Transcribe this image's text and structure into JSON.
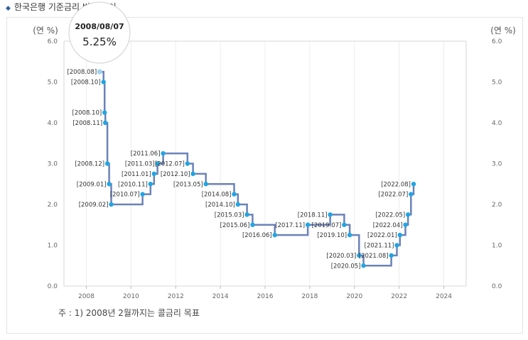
{
  "page": {
    "title": "한국은행 기준금리 변동 추이",
    "footnote": "주 : 1) 2008년 2월까지는 콜금리 목표"
  },
  "tooltip": {
    "date": "2008/08/07",
    "value": "5.25%"
  },
  "chart_data": {
    "type": "line",
    "step": true,
    "y_axis_label_left": "(연 %)",
    "y_axis_label_right": "(연 %)",
    "ylim": [
      0,
      6
    ],
    "yticks": [
      "0.0",
      "1.0",
      "2.0",
      "3.0",
      "4.0",
      "5.0",
      "6.0"
    ],
    "xlim": [
      2007,
      2025
    ],
    "xticks": [
      "2008",
      "2010",
      "2012",
      "2014",
      "2016",
      "2018",
      "2020",
      "2022",
      "2024"
    ],
    "grid": "x-major",
    "colors": {
      "line": "#6b82b8",
      "point": "#22a5e3",
      "point_highlight": "#9fd3ef"
    },
    "points": [
      {
        "date": "2008-08-07",
        "label": "[2008.08]",
        "value": 5.25
      },
      {
        "date": "2008-10-09",
        "label": "[2008.10]",
        "value": 5.0
      },
      {
        "date": "2008-10-27",
        "label": "[2008.10]",
        "value": 4.25
      },
      {
        "date": "2008-11-07",
        "label": "[2008.11]",
        "value": 4.0
      },
      {
        "date": "2008-12-11",
        "label": "[2008.12]",
        "value": 3.0
      },
      {
        "date": "2009-01-09",
        "label": "[2009.01]",
        "value": 2.5
      },
      {
        "date": "2009-02-12",
        "label": "[2009.02]",
        "value": 2.0
      },
      {
        "date": "2010-07-09",
        "label": "[2010.07]",
        "value": 2.25
      },
      {
        "date": "2010-11-16",
        "label": "[2010.11]",
        "value": 2.5
      },
      {
        "date": "2011-01-13",
        "label": "[2011.01]",
        "value": 2.75
      },
      {
        "date": "2011-03-10",
        "label": "[2011.03]",
        "value": 3.0
      },
      {
        "date": "2011-06-10",
        "label": "[2011.06]",
        "value": 3.25
      },
      {
        "date": "2012-07-12",
        "label": "[2012.07]",
        "value": 3.0
      },
      {
        "date": "2012-10-11",
        "label": "[2012.10]",
        "value": 2.75
      },
      {
        "date": "2013-05-09",
        "label": "[2013.05]",
        "value": 2.5
      },
      {
        "date": "2014-08-14",
        "label": "[2014.08]",
        "value": 2.25
      },
      {
        "date": "2014-10-15",
        "label": "[2014.10]",
        "value": 2.0
      },
      {
        "date": "2015-03-12",
        "label": "[2015.03]",
        "value": 1.75
      },
      {
        "date": "2015-06-11",
        "label": "[2015.06]",
        "value": 1.5
      },
      {
        "date": "2016-06-09",
        "label": "[2016.06]",
        "value": 1.25
      },
      {
        "date": "2017-11-30",
        "label": "[2017.11]",
        "value": 1.5
      },
      {
        "date": "2018-11-30",
        "label": "[2018.11]",
        "value": 1.75
      },
      {
        "date": "2019-07-18",
        "label": "[2019.07]",
        "value": 1.5
      },
      {
        "date": "2019-10-16",
        "label": "[2019.10]",
        "value": 1.25
      },
      {
        "date": "2020-03-17",
        "label": "[2020.03]",
        "value": 0.75
      },
      {
        "date": "2020-05-28",
        "label": "[2020.05]",
        "value": 0.5
      },
      {
        "date": "2021-08-26",
        "label": "[2021.08]",
        "value": 0.75
      },
      {
        "date": "2021-11-25",
        "label": "[2021.11]",
        "value": 1.0
      },
      {
        "date": "2022-01-14",
        "label": "[2022.01]",
        "value": 1.25
      },
      {
        "date": "2022-04-14",
        "label": "[2022.04]",
        "value": 1.5
      },
      {
        "date": "2022-05-26",
        "label": "[2022.05]",
        "value": 1.75
      },
      {
        "date": "2022-07-13",
        "label": "[2022.07]",
        "value": 2.25
      },
      {
        "date": "2022-08-25",
        "label": "[2022.08]",
        "value": 2.5
      }
    ],
    "line_end": "2022-10-01"
  }
}
